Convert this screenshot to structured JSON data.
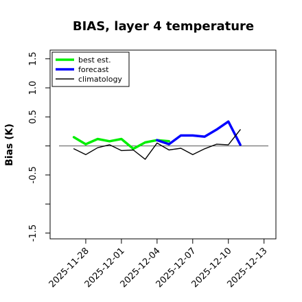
{
  "chart_data": {
    "type": "line",
    "title": "BIAS, layer 4 temperature",
    "xlabel": "",
    "ylabel": "Bias (K)",
    "ylim": [
      -1.6,
      1.65
    ],
    "xlim": [
      "2025-11-25",
      "2025-12-14"
    ],
    "y_ticks": [
      -1.5,
      -1.0,
      -0.5,
      0.0,
      0.5,
      1.0,
      1.5
    ],
    "y_tick_labels": [
      "-1.5",
      "",
      "-0.5",
      "",
      "0.5",
      "1.0",
      "1.5"
    ],
    "x_ticks": [
      "2025-11-28",
      "2025-12-01",
      "2025-12-04",
      "2025-12-07",
      "2025-12-10",
      "2025-12-13"
    ],
    "highlighted_x_tick": "2025-12-04",
    "highlight_color": "#228b22",
    "zero_line": true,
    "grid": false,
    "legend_position": "top-left",
    "series": [
      {
        "name": "best est.",
        "color": "#00ee00",
        "x": [
          "2025-11-27",
          "2025-11-28",
          "2025-11-29",
          "2025-11-30",
          "2025-12-01",
          "2025-12-02",
          "2025-12-03",
          "2025-12-04",
          "2025-12-05"
        ],
        "values": [
          0.15,
          0.03,
          0.12,
          0.08,
          0.12,
          -0.05,
          0.06,
          0.1,
          0.08
        ]
      },
      {
        "name": "forecast",
        "color": "#0000ff",
        "x": [
          "2025-12-04",
          "2025-12-05",
          "2025-12-06",
          "2025-12-07",
          "2025-12-08",
          "2025-12-09",
          "2025-12-10",
          "2025-12-11"
        ],
        "values": [
          0.1,
          0.03,
          0.18,
          0.18,
          0.16,
          0.28,
          0.42,
          0.02
        ]
      },
      {
        "name": "climatology",
        "color": "#000000",
        "x": [
          "2025-11-27",
          "2025-11-28",
          "2025-11-29",
          "2025-11-30",
          "2025-12-01",
          "2025-12-02",
          "2025-12-03",
          "2025-12-04",
          "2025-12-05",
          "2025-12-06",
          "2025-12-07",
          "2025-12-08",
          "2025-12-09",
          "2025-12-10",
          "2025-12-11"
        ],
        "values": [
          -0.05,
          -0.15,
          -0.03,
          0.02,
          -0.08,
          -0.07,
          -0.23,
          0.05,
          -0.07,
          -0.04,
          -0.15,
          -0.05,
          0.03,
          0.02,
          0.28
        ]
      }
    ]
  }
}
